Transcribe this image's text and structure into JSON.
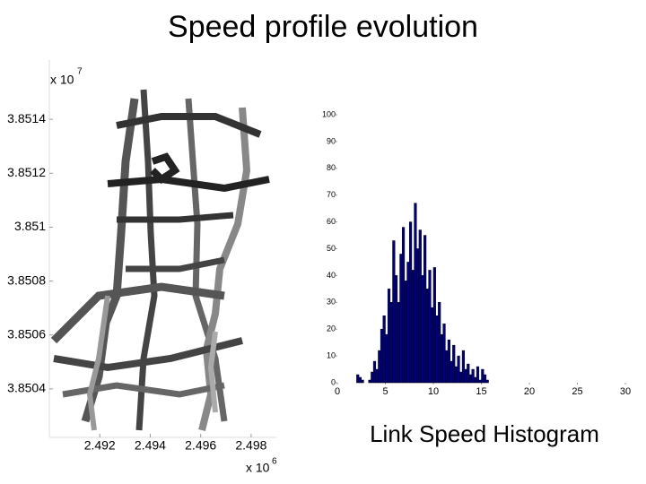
{
  "header": {
    "title": "Speed profile evolution"
  },
  "chart_data": [
    {
      "type": "map",
      "xlim": [
        2.49,
        2.499
      ],
      "xticks": [
        2.492,
        2.494,
        2.496,
        2.498
      ],
      "ylim": [
        3.85022,
        3.85162
      ],
      "yticks": [
        3.8504,
        3.8506,
        3.8508,
        3.851,
        3.8512,
        3.8514
      ],
      "x_multiplier": "x 10",
      "x_multiplier_exponent": "6",
      "y_multiplier": "x 10",
      "y_multiplier_exponent": "7"
    },
    {
      "type": "histogram",
      "title": "Link Speed Histogram",
      "color": "#00007f",
      "bins": [
        2,
        2.25,
        2.5,
        2.75,
        3,
        3.25,
        3.5,
        3.75,
        4,
        4.25,
        4.5,
        4.75,
        5,
        5.25,
        5.5,
        5.75,
        6,
        6.25,
        6.5,
        6.75,
        7,
        7.25,
        7.5,
        7.75,
        8,
        8.25,
        8.5,
        8.75,
        9,
        9.25,
        9.5,
        9.75,
        10,
        10.25,
        10.5,
        10.75,
        11,
        11.25,
        11.5,
        11.75,
        12,
        12.25,
        12.5,
        12.75,
        13,
        13.25,
        13.5,
        13.75,
        14,
        14.25,
        14.5,
        14.75,
        15,
        15.25,
        15.5,
        15.75,
        16
      ],
      "values": [
        3,
        2,
        1,
        0,
        0,
        1,
        4,
        8,
        5,
        12,
        20,
        25,
        18,
        35,
        30,
        53,
        40,
        30,
        48,
        58,
        38,
        45,
        60,
        42,
        67,
        50,
        57,
        40,
        55,
        35,
        42,
        28,
        43,
        25,
        30,
        18,
        22,
        12,
        16,
        8,
        14,
        6,
        10,
        4,
        12,
        5,
        7,
        3,
        5,
        2,
        6,
        1,
        5,
        3,
        1,
        0
      ],
      "xlim": [
        0,
        30
      ],
      "xticks": [
        0,
        5,
        10,
        15,
        20,
        25,
        30
      ],
      "ylim": [
        0,
        100
      ],
      "yticks": [
        0,
        10,
        20,
        30,
        40,
        50,
        60,
        70,
        80,
        90,
        100
      ]
    }
  ]
}
